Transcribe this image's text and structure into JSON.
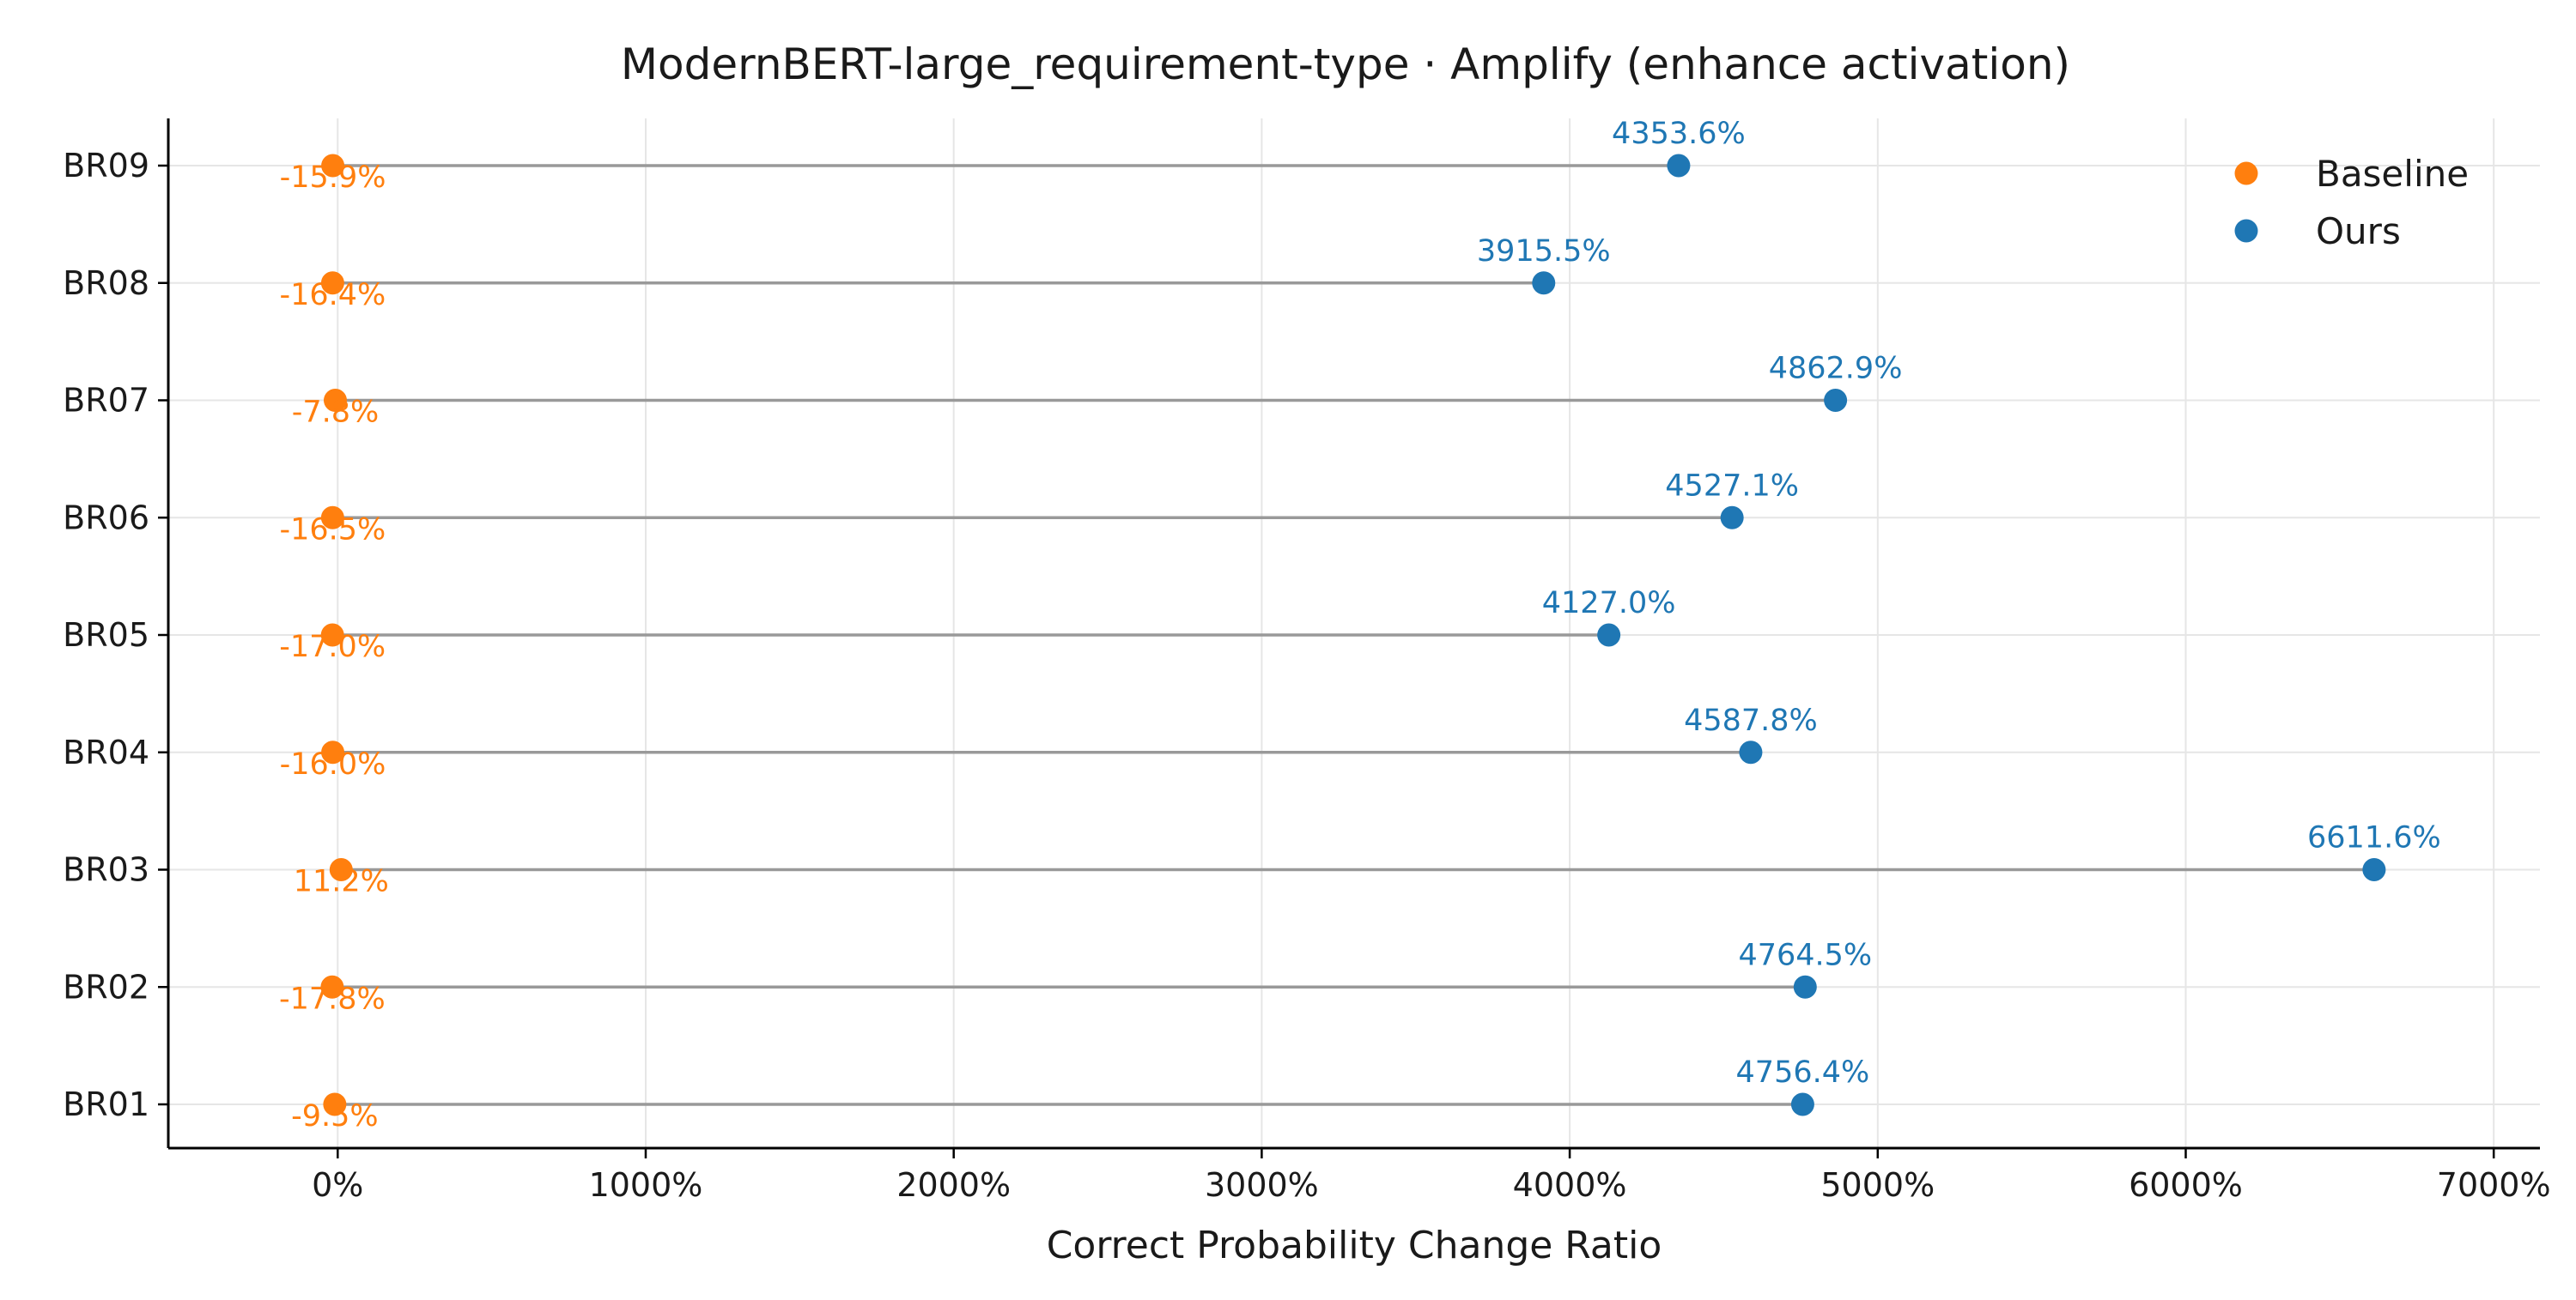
{
  "chart_data": {
    "type": "scatter",
    "title": "ModernBERT-large_requirement-type · Amplify (enhance activation)",
    "xlabel": "Correct Probability Change Ratio",
    "ylabel": "",
    "xlim": [
      -550,
      7150
    ],
    "x_ticks": [
      0,
      1000,
      2000,
      3000,
      4000,
      5000,
      6000,
      7000
    ],
    "x_tick_labels": [
      "0%",
      "1000%",
      "2000%",
      "3000%",
      "4000%",
      "5000%",
      "6000%",
      "7000%"
    ],
    "categories": [
      "BR01",
      "BR02",
      "BR03",
      "BR04",
      "BR05",
      "BR06",
      "BR07",
      "BR08",
      "BR09"
    ],
    "series": [
      {
        "name": "Baseline",
        "color": "#ff7f0e",
        "values": [
          -9.5,
          -17.8,
          11.2,
          -16.0,
          -17.0,
          -16.5,
          -7.8,
          -16.4,
          -15.9
        ],
        "labels": [
          "-9.5%",
          "-17.8%",
          "11.2%",
          "-16.0%",
          "-17.0%",
          "-16.5%",
          "-7.8%",
          "-16.4%",
          "-15.9%"
        ]
      },
      {
        "name": "Ours",
        "color": "#1f77b4",
        "values": [
          4756.4,
          4764.5,
          6611.6,
          4587.8,
          4127.0,
          4527.1,
          4862.9,
          3915.5,
          4353.6
        ],
        "labels": [
          "4756.4%",
          "4764.5%",
          "6611.6%",
          "4587.8%",
          "4127.0%",
          "4527.1%",
          "4862.9%",
          "3915.5%",
          "4353.6%"
        ]
      }
    ],
    "grid": true,
    "legend_position": "top-right",
    "connector_color": "#999999"
  }
}
